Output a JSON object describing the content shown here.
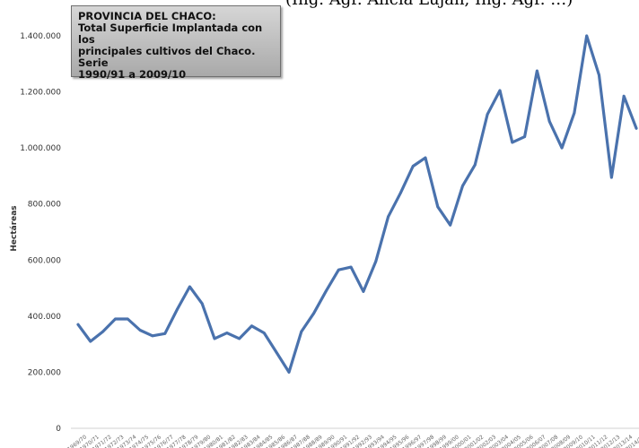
{
  "page": {
    "top_caption": "(Ing. Agr. Alicia Lujan, Ing. Agr. …)"
  },
  "chart_data": {
    "type": "line",
    "title_lines": [
      "PROVINCIA DEL CHACO:",
      "Total Superficie Implantada con los",
      "principales cultivos del Chaco. Serie",
      "1990/91 a 2009/10"
    ],
    "xlabel": "",
    "ylabel": "Hectáreas",
    "ylim": [
      0,
      1400000
    ],
    "yticks": [
      0,
      200000,
      400000,
      600000,
      800000,
      1000000,
      1200000,
      1400000
    ],
    "ytick_labels": [
      "0",
      "200.000",
      "400.000",
      "600.000",
      "800.000",
      "1.000.000",
      "1.200.000",
      "1.400.000"
    ],
    "grid": false,
    "line_color": "#4a72ad",
    "x": [
      "1969/70",
      "1970/71",
      "1971/72",
      "1972/73",
      "1973/74",
      "1974/75",
      "1975/76",
      "1976/77",
      "1977/78",
      "1978/79",
      "1979/80",
      "1980/81",
      "1981/82",
      "1982/83",
      "1983/84",
      "1984/85",
      "1985/86",
      "1986/87",
      "1987/88",
      "1988/89",
      "1989/90",
      "1990/91",
      "1991/92",
      "1992/93",
      "1993/94",
      "1994/95",
      "1995/96",
      "1996/97",
      "1997/98",
      "1998/99",
      "1999/00",
      "2000/01",
      "2001/02",
      "2002/03",
      "2003/04",
      "2004/05",
      "2005/06",
      "2006/07",
      "2007/08",
      "2008/09",
      "2009/10",
      "2010/11",
      "2011/12",
      "2012/13",
      "2013/14",
      "2014/15"
    ],
    "series": [
      {
        "values": [
          370000,
          310000,
          345000,
          390000,
          390000,
          350000,
          330000,
          338000,
          425000,
          505000,
          445000,
          320000,
          340000,
          320000,
          365000,
          340000,
          270000,
          200000,
          345000,
          410000,
          490000,
          565000,
          575000,
          488000,
          595000,
          755000,
          840000,
          935000,
          965000,
          790000,
          725000,
          865000,
          940000,
          1120000,
          1205000,
          1020000,
          1040000,
          1275000,
          1095000,
          1000000,
          1125000,
          1400000,
          1260000,
          895000,
          1185000,
          1070000
        ]
      }
    ]
  }
}
